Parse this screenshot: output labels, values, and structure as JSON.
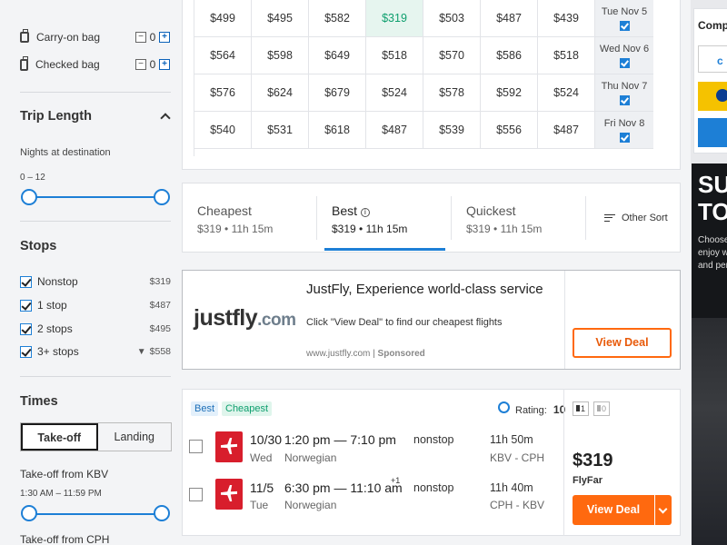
{
  "bags": {
    "carry_on": {
      "label": "Carry-on bag",
      "count": "0"
    },
    "checked": {
      "label": "Checked bag",
      "count": "0"
    }
  },
  "trip_length": {
    "title": "Trip Length",
    "subtitle": "Nights at destination",
    "range": "0 – 12",
    "slider_fraction": [
      0,
      1
    ]
  },
  "stops": {
    "title": "Stops",
    "items": [
      {
        "label": "Nonstop",
        "price": "$319"
      },
      {
        "label": "1 stop",
        "price": "$487"
      },
      {
        "label": "2 stops",
        "price": "$495"
      },
      {
        "label": "3+ stops",
        "price": "$558"
      }
    ]
  },
  "times": {
    "title": "Times",
    "tabs": [
      "Take-off",
      "Landing"
    ],
    "takeoff_kbv": "Take-off from KBV",
    "range": "1:30 AM – 11:59 PM",
    "takeoff_cph": "Take-off from CPH"
  },
  "matrix": {
    "rows": [
      {
        "prices": [
          "$499",
          "$495",
          "$582",
          "$319",
          "$503",
          "$487",
          "$439"
        ],
        "date": "Tue Nov 5"
      },
      {
        "prices": [
          "$564",
          "$598",
          "$649",
          "$518",
          "$570",
          "$586",
          "$518"
        ],
        "date": "Wed Nov 6"
      },
      {
        "prices": [
          "$576",
          "$624",
          "$679",
          "$524",
          "$578",
          "$592",
          "$524"
        ],
        "date": "Thu Nov 7"
      },
      {
        "prices": [
          "$540",
          "$531",
          "$618",
          "$487",
          "$539",
          "$556",
          "$487"
        ],
        "date": "Fri Nov 8"
      }
    ]
  },
  "sort_tabs": [
    {
      "title": "Cheapest",
      "sub": "$319 • 11h 15m"
    },
    {
      "title": "Best",
      "sub": "$319 • 11h 15m"
    },
    {
      "title": "Quickest",
      "sub": "$319 • 11h 15m"
    }
  ],
  "other_sort": "Other Sort",
  "ad": {
    "logo_a": "justfly",
    "logo_b": ".com",
    "headline": "JustFly, Experience world-class service",
    "body": "Click \"View Deal\" to find our cheapest flights",
    "url": "www.justfly.com",
    "sponsored": "Sponsored",
    "button": "View Deal"
  },
  "result": {
    "badges": [
      "Best",
      "Cheapest"
    ],
    "rating_label": "Rating:",
    "rating_value": "10",
    "bag_counts": [
      "1",
      "0"
    ],
    "legs": [
      {
        "date": "10/30",
        "day": "Wed",
        "times": "1:20 pm — 7:10 pm",
        "plus": "",
        "airline": "Norwegian",
        "stops": "nonstop",
        "duration": "11h 50m",
        "route": "KBV - CPH"
      },
      {
        "date": "11/5",
        "day": "Tue",
        "times": "6:30 pm — 11:10 am",
        "plus": "+1",
        "airline": "Norwegian",
        "stops": "nonstop",
        "duration": "11h 40m",
        "route": "CPH - KBV"
      }
    ],
    "price": "$319",
    "provider": "FlyFar",
    "button": "View Deal"
  },
  "right_panel": {
    "compare_label": "Comp",
    "ad_big": "SU\nTO",
    "ad_small": "Choose\nenjoy w\nand per"
  },
  "colors": {
    "accent": "#1d7fd6",
    "orange": "#ff690f",
    "green": "#0e9f6e",
    "norwegian_red": "#d81e2c"
  }
}
